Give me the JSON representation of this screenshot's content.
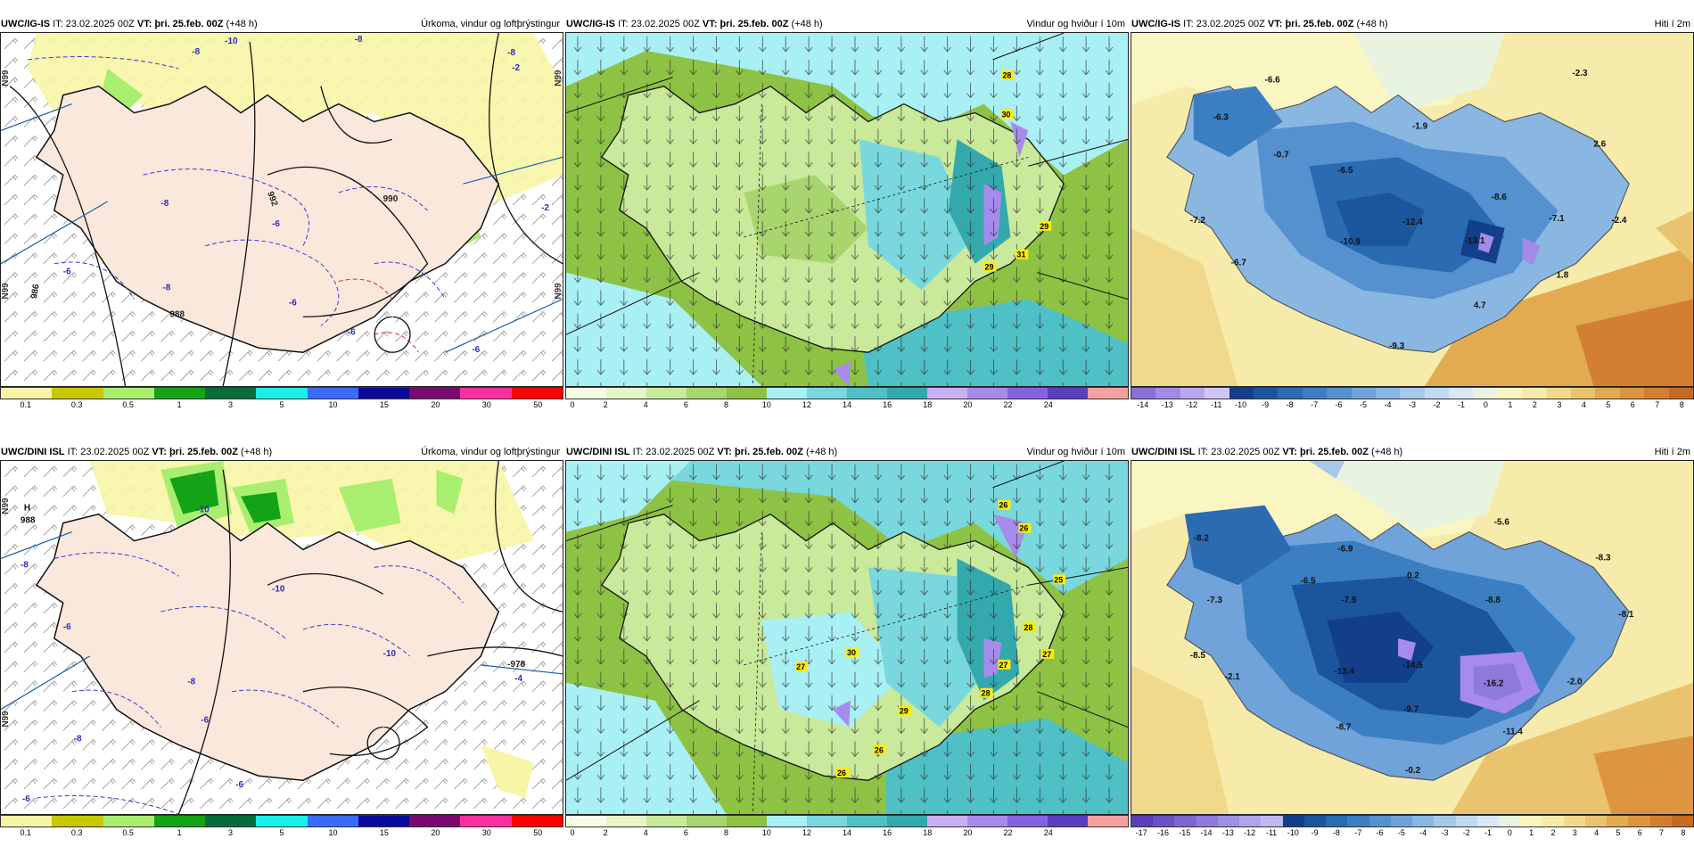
{
  "panels": [
    {
      "id": "p1",
      "model": "UWC/IG-IS",
      "it_label": "IT:",
      "it_value": "23.02.2025 00Z",
      "vt_label": "VT:",
      "vt_value": "þri. 25.feb. 00Z",
      "lead": "(+48 h)",
      "title": "Úrkoma, vindur og loftþrýstingur",
      "legend_ticks": [
        "0.1",
        "0.3",
        "0.5",
        "1",
        "3",
        "5",
        "10",
        "15",
        "20",
        "30",
        "50"
      ],
      "legend_colors": [
        "#f7f5a6",
        "#c8c800",
        "#a9ee6f",
        "#13a316",
        "#0a6b3a",
        "#19f0e8",
        "#3a6bff",
        "#0a0a9a",
        "#7a0a6e",
        "#ff2fa0",
        "#ff0000"
      ],
      "labels": [
        {
          "text": "-10"
        },
        {
          "text": "-8"
        },
        {
          "text": "-8"
        },
        {
          "text": "-8"
        },
        {
          "text": "-6"
        },
        {
          "text": "-6"
        },
        {
          "text": "-2"
        },
        {
          "text": "-6"
        },
        {
          "text": "-8"
        },
        {
          "text": "-6"
        },
        {
          "text": "-8"
        },
        {
          "text": "-2"
        },
        {
          "text": "-6"
        },
        {
          "text": "986"
        },
        {
          "text": "990"
        },
        {
          "text": "992"
        },
        {
          "text": "988"
        }
      ],
      "side_labels": [
        "N99",
        "N99",
        "N99",
        "N99"
      ]
    },
    {
      "id": "p2",
      "model": "UWC/IG-IS",
      "it_label": "IT:",
      "it_value": "23.02.2025 00Z",
      "vt_label": "VT:",
      "vt_value": "þri. 25.feb. 00Z",
      "lead": "(+48 h)",
      "title": "Vindur og hviður í 10m",
      "legend_ticks": [
        "0",
        "2",
        "4",
        "6",
        "8",
        "10",
        "12",
        "14",
        "16",
        "18",
        "20",
        "22",
        "24"
      ],
      "legend_colors": [
        "#f7fbe6",
        "#e6f5c8",
        "#c9e99b",
        "#a9d56f",
        "#8ec244",
        "#a9f0f5",
        "#79d8dd",
        "#4fc0c5",
        "#33a8ad",
        "#c8b0f5",
        "#a78bec",
        "#8563e0",
        "#5a3fc0",
        "#f5a0a0"
      ],
      "gusts": [
        "28",
        "30",
        "29",
        "29",
        "31"
      ]
    },
    {
      "id": "p3",
      "model": "UWC/IG-IS",
      "it_label": "IT:",
      "it_value": "23.02.2025 00Z",
      "vt_label": "VT:",
      "vt_value": "þri. 25.feb. 00Z",
      "lead": "(+48 h)",
      "title": "Hiti í 2m",
      "legend_ticks": [
        "-14",
        "-13",
        "-12",
        "-11",
        "-10",
        "-9",
        "-8",
        "-7",
        "-6",
        "-5",
        "-4",
        "-3",
        "-2",
        "-1",
        "0",
        "1",
        "2",
        "3",
        "4",
        "5",
        "6",
        "7",
        "8"
      ],
      "legend_colors": [
        "#8a6fd8",
        "#a28be6",
        "#b9a8ef",
        "#d0c5f5",
        "#123e8a",
        "#1b559e",
        "#2a6bb2",
        "#3b7fc2",
        "#5590cf",
        "#6fa3d9",
        "#8ab6e2",
        "#a6c9ea",
        "#c0daf1",
        "#d8e9f5",
        "#e8f3e0",
        "#faf6c2",
        "#f6ebaa",
        "#f0d98b",
        "#e9c36e",
        "#e2ab52",
        "#dc9540",
        "#d37f32",
        "#c76a24"
      ],
      "labels": [
        {
          "text": "-6.6"
        },
        {
          "text": "-6.3"
        },
        {
          "text": "-0.7"
        },
        {
          "text": "-6.5"
        },
        {
          "text": "-1.9"
        },
        {
          "text": "-2.3"
        },
        {
          "text": "2.6"
        },
        {
          "text": "-8.6"
        },
        {
          "text": "-7.2"
        },
        {
          "text": "-10.9"
        },
        {
          "text": "-12.4"
        },
        {
          "text": "-13.1"
        },
        {
          "text": "-7.1"
        },
        {
          "text": "-2.4"
        },
        {
          "text": "-6.7"
        },
        {
          "text": "1.8"
        },
        {
          "text": "4.7"
        },
        {
          "text": "-9.3"
        }
      ]
    },
    {
      "id": "p4",
      "model": "UWC/DINI ISL",
      "it_label": "IT:",
      "it_value": "23.02.2025 00Z",
      "vt_label": "VT:",
      "vt_value": "þri. 25.feb. 00Z",
      "lead": "(+48 h)",
      "title": "Úrkoma, vindur og loftþrýstingur",
      "legend_ticks": [
        "0.1",
        "0.3",
        "0.5",
        "1",
        "3",
        "5",
        "10",
        "15",
        "20",
        "30",
        "50"
      ],
      "legend_colors": [
        "#f7f5a6",
        "#c8c800",
        "#a9ee6f",
        "#13a316",
        "#0a6b3a",
        "#19f0e8",
        "#3a6bff",
        "#0a0a9a",
        "#7a0a6e",
        "#ff2fa0",
        "#ff0000"
      ],
      "high": {
        "letter": "H",
        "value": "988"
      },
      "labels": [
        {
          "text": "-10"
        },
        {
          "text": "-8"
        },
        {
          "text": "-6"
        },
        {
          "text": "-10"
        },
        {
          "text": "-8"
        },
        {
          "text": "-10"
        },
        {
          "text": "-8"
        },
        {
          "text": "-6"
        },
        {
          "text": "-6"
        },
        {
          "text": "-4"
        },
        {
          "text": "-6"
        },
        {
          "text": "-978"
        }
      ],
      "side_labels": [
        "N99",
        "N99"
      ]
    },
    {
      "id": "p5",
      "model": "UWC/DINI ISL",
      "it_label": "IT:",
      "it_value": "23.02.2025 00Z",
      "vt_label": "VT:",
      "vt_value": "þri. 25.feb. 00Z",
      "lead": "(+48 h)",
      "title": "Vindur og hviður í 10m",
      "legend_ticks": [
        "0",
        "2",
        "4",
        "6",
        "8",
        "10",
        "12",
        "14",
        "16",
        "18",
        "20",
        "22",
        "24"
      ],
      "legend_colors": [
        "#f7fbe6",
        "#e6f5c8",
        "#c9e99b",
        "#a9d56f",
        "#8ec244",
        "#a9f0f5",
        "#79d8dd",
        "#4fc0c5",
        "#33a8ad",
        "#c8b0f5",
        "#a78bec",
        "#8563e0",
        "#5a3fc0",
        "#f5a0a0"
      ],
      "gusts": [
        "26",
        "26",
        "25",
        "28",
        "27",
        "27",
        "30",
        "27",
        "28",
        "29",
        "26",
        "26"
      ]
    },
    {
      "id": "p6",
      "model": "UWC/DINI ISL",
      "it_label": "IT:",
      "it_value": "23.02.2025 00Z",
      "vt_label": "VT:",
      "vt_value": "þri. 25.feb. 00Z",
      "lead": "(+48 h)",
      "title": "Hiti í 2m",
      "legend_ticks": [
        "-17",
        "-16",
        "-15",
        "-14",
        "-13",
        "-12",
        "-11",
        "-10",
        "-9",
        "-8",
        "-7",
        "-6",
        "-5",
        "-4",
        "-3",
        "-2",
        "-1",
        "0",
        "1",
        "2",
        "3",
        "4",
        "5",
        "6",
        "7",
        "8"
      ],
      "legend_colors": [
        "#5b3fb8",
        "#6b52c4",
        "#7c66d0",
        "#8d7adb",
        "#9f8fe5",
        "#b1a3ec",
        "#c3b8f2",
        "#123e8a",
        "#1b559e",
        "#2a6bb2",
        "#3b7fc2",
        "#5590cf",
        "#6fa3d9",
        "#8ab6e2",
        "#a6c9ea",
        "#c0daf1",
        "#d8e9f5",
        "#e8f3e0",
        "#faf6c2",
        "#f6ebaa",
        "#f0d98b",
        "#e9c36e",
        "#e2ab52",
        "#dc9540",
        "#d37f32",
        "#c76a24"
      ],
      "labels": [
        {
          "text": "-8.2"
        },
        {
          "text": "-5.6"
        },
        {
          "text": "-6.9"
        },
        {
          "text": "-8.3"
        },
        {
          "text": "-6.5"
        },
        {
          "text": "0.2"
        },
        {
          "text": "-7.3"
        },
        {
          "text": "-7.9"
        },
        {
          "text": "-8.8"
        },
        {
          "text": "-8.1"
        },
        {
          "text": "-8.5"
        },
        {
          "text": "-2.1"
        },
        {
          "text": "-13.4"
        },
        {
          "text": "-14.5"
        },
        {
          "text": "-16.2"
        },
        {
          "text": "-2.0"
        },
        {
          "text": "-9.7"
        },
        {
          "text": "-8.7"
        },
        {
          "text": "-11.4"
        },
        {
          "text": "-0.2"
        }
      ]
    }
  ]
}
